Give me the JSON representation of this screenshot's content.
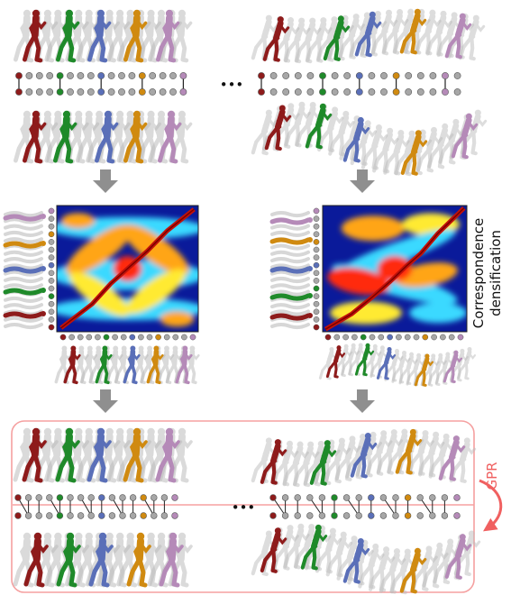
{
  "labels": {
    "ellipsis": "•••",
    "densification_line1": "Correspondence",
    "densification_line2": "densification",
    "gpr": "GPR"
  },
  "colors": {
    "red": "#8e1b1b",
    "green": "#1f8a2a",
    "blue": "#5a6fb8",
    "orange": "#d08a10",
    "purple": "#b58ab8",
    "ghost": "#bcbcbc",
    "arrow": "#8f8f8f",
    "gpr": "#f06060",
    "heat_bg": "#0a1a9a"
  }
}
